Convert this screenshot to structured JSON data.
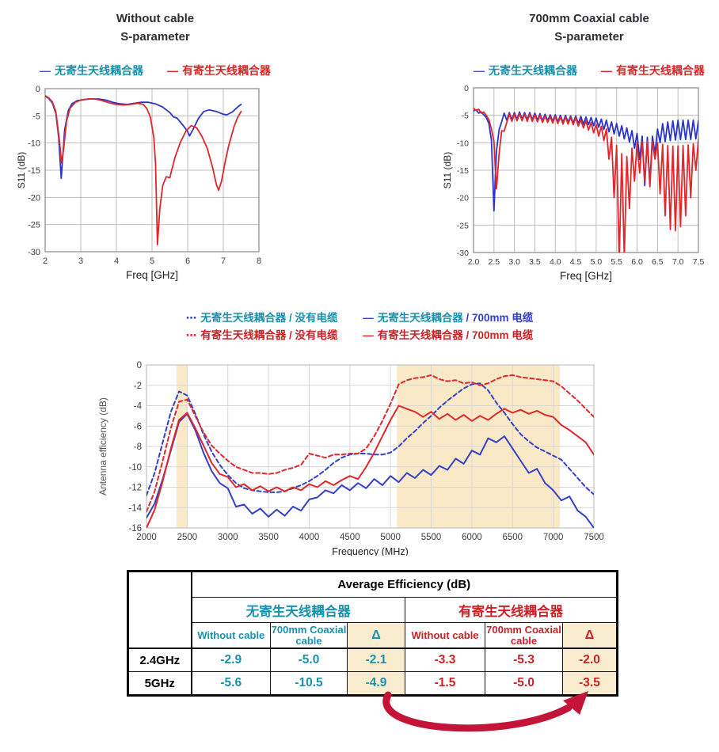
{
  "colors": {
    "blue_line": "#2a35c9",
    "red_line": "#e2262b",
    "teal_text": "#1792ad",
    "red_text": "#cc2127",
    "legend_blue": "#4a52d4",
    "legend_red": "#d42a2a",
    "mid_blue": "#3340c8",
    "band": "#fae9c7",
    "delta_bg": "#faecce",
    "arrow": "#c41538"
  },
  "chart_data": [
    {
      "type": "line",
      "name": "s11_without_cable",
      "title_line1": "Without cable",
      "title_line2": "S-parameter",
      "legend": [
        {
          "marker": "—",
          "marker_color": "#4a52d4",
          "label": "无寄生天线耦合器",
          "label_color": "#1792ad"
        },
        {
          "marker": "—",
          "marker_color": "#e2262b",
          "label": "有寄生天线耦合器",
          "label_color": "#d42a2a"
        }
      ],
      "xlabel": "Freq [GHz]",
      "ylabel": "S11 (dB)",
      "xlim": [
        2,
        8
      ],
      "ylim": [
        -30,
        0
      ],
      "x_ticks": [
        2,
        3,
        4,
        5,
        6,
        7,
        8
      ],
      "x_tick_labels": [
        "2",
        "3",
        "4",
        "5",
        "6",
        "7",
        "8"
      ],
      "y_ticks": [
        0,
        -5,
        -10,
        -15,
        -20,
        -25,
        -30
      ],
      "grid": true,
      "series": [
        {
          "name": "无寄生天线耦合器",
          "color": "#2a35c9",
          "style": "solid",
          "points": [
            [
              2.0,
              -1.4
            ],
            [
              2.1,
              -1.8
            ],
            [
              2.2,
              -2.6
            ],
            [
              2.3,
              -4.5
            ],
            [
              2.38,
              -9.0
            ],
            [
              2.45,
              -16.5
            ],
            [
              2.5,
              -12.0
            ],
            [
              2.55,
              -7.5
            ],
            [
              2.65,
              -4.0
            ],
            [
              2.75,
              -2.8
            ],
            [
              2.9,
              -2.2
            ],
            [
              3.1,
              -2.0
            ],
            [
              3.3,
              -1.9
            ],
            [
              3.5,
              -1.9
            ],
            [
              3.7,
              -2.1
            ],
            [
              3.9,
              -2.5
            ],
            [
              4.1,
              -2.8
            ],
            [
              4.3,
              -2.9
            ],
            [
              4.5,
              -2.7
            ],
            [
              4.7,
              -2.5
            ],
            [
              4.9,
              -2.5
            ],
            [
              5.1,
              -2.8
            ],
            [
              5.3,
              -3.4
            ],
            [
              5.5,
              -4.4
            ],
            [
              5.6,
              -5.2
            ],
            [
              5.7,
              -5.4
            ],
            [
              5.8,
              -6.2
            ],
            [
              5.9,
              -7.0
            ],
            [
              6.0,
              -7.9
            ],
            [
              6.05,
              -8.7
            ],
            [
              6.15,
              -7.5
            ],
            [
              6.3,
              -5.5
            ],
            [
              6.45,
              -4.2
            ],
            [
              6.6,
              -3.9
            ],
            [
              6.8,
              -4.2
            ],
            [
              7.0,
              -4.7
            ],
            [
              7.1,
              -4.8
            ],
            [
              7.25,
              -4.3
            ],
            [
              7.4,
              -3.4
            ],
            [
              7.5,
              -2.9
            ]
          ]
        },
        {
          "name": "有寄生天线耦合器",
          "color": "#e2262b",
          "style": "solid",
          "points": [
            [
              2.0,
              -1.3
            ],
            [
              2.1,
              -1.7
            ],
            [
              2.2,
              -2.4
            ],
            [
              2.3,
              -4.2
            ],
            [
              2.4,
              -9.5
            ],
            [
              2.46,
              -13.7
            ],
            [
              2.52,
              -11.0
            ],
            [
              2.6,
              -6.0
            ],
            [
              2.7,
              -3.6
            ],
            [
              2.85,
              -2.5
            ],
            [
              3.0,
              -2.1
            ],
            [
              3.2,
              -1.9
            ],
            [
              3.4,
              -1.9
            ],
            [
              3.6,
              -2.2
            ],
            [
              3.8,
              -2.6
            ],
            [
              4.0,
              -2.9
            ],
            [
              4.2,
              -3.0
            ],
            [
              4.4,
              -2.9
            ],
            [
              4.6,
              -2.7
            ],
            [
              4.75,
              -2.9
            ],
            [
              4.85,
              -3.6
            ],
            [
              4.95,
              -5.2
            ],
            [
              5.05,
              -9.0
            ],
            [
              5.1,
              -14.0
            ],
            [
              5.15,
              -28.7
            ],
            [
              5.22,
              -22.0
            ],
            [
              5.3,
              -17.8
            ],
            [
              5.4,
              -16.2
            ],
            [
              5.5,
              -16.4
            ],
            [
              5.55,
              -15.0
            ],
            [
              5.65,
              -12.5
            ],
            [
              5.8,
              -9.8
            ],
            [
              5.95,
              -7.8
            ],
            [
              6.1,
              -6.8
            ],
            [
              6.25,
              -7.2
            ],
            [
              6.4,
              -8.8
            ],
            [
              6.55,
              -11.0
            ],
            [
              6.7,
              -14.5
            ],
            [
              6.8,
              -17.5
            ],
            [
              6.87,
              -18.7
            ],
            [
              6.95,
              -17.0
            ],
            [
              7.05,
              -13.5
            ],
            [
              7.15,
              -10.5
            ],
            [
              7.3,
              -7.0
            ],
            [
              7.4,
              -5.3
            ],
            [
              7.5,
              -4.2
            ]
          ]
        }
      ]
    },
    {
      "type": "line",
      "name": "s11_700mm_coaxial_cable",
      "title_line1": "700mm Coaxial cable",
      "title_line2": "S-parameter",
      "legend": [
        {
          "marker": "—",
          "marker_color": "#4a52d4",
          "label": "无寄生天线耦合器",
          "label_color": "#1792ad"
        },
        {
          "marker": "—",
          "marker_color": "#e2262b",
          "label": "有寄生天线耦合器",
          "label_color": "#d42a2a"
        }
      ],
      "xlabel": "Freq [GHz]",
      "ylabel": "S11 (dB)",
      "xlim": [
        2,
        7.5
      ],
      "ylim": [
        -30,
        0
      ],
      "x_ticks": [
        2.0,
        2.5,
        3.0,
        3.5,
        4.0,
        4.5,
        5.0,
        5.5,
        6.0,
        6.5,
        7.0,
        7.5
      ],
      "x_tick_labels": [
        "2.0",
        "2.5",
        "3.0",
        "3.5",
        "4.0",
        "4.5",
        "5.0",
        "5.5",
        "6.0",
        "6.5",
        "7.0",
        "7.5"
      ],
      "y_ticks": [
        0,
        -5,
        -10,
        -15,
        -20,
        -25,
        -30
      ],
      "grid": true,
      "series": [
        {
          "name": "无寄生天线耦合器",
          "color": "#2a35c9",
          "style": "solid",
          "x0": 2.0,
          "dx": 0.0625,
          "values": [
            -4.2,
            -4.0,
            -4.6,
            -4.4,
            -4.9,
            -5.4,
            -6.5,
            -9.5,
            -22.4,
            -11.5,
            -7.6,
            -6.2,
            -4.6,
            -5.9,
            -4.5,
            -5.8,
            -4.5,
            -5.7,
            -4.4,
            -5.7,
            -4.5,
            -5.8,
            -4.5,
            -5.8,
            -4.6,
            -5.9,
            -4.7,
            -6.0,
            -4.8,
            -6.0,
            -4.9,
            -6.1,
            -4.9,
            -6.2,
            -5.0,
            -6.3,
            -5.0,
            -6.3,
            -5.1,
            -6.4,
            -5.1,
            -6.5,
            -5.2,
            -6.6,
            -5.3,
            -6.7,
            -5.4,
            -6.9,
            -5.5,
            -7.2,
            -5.7,
            -7.6,
            -5.9,
            -8.0,
            -6.2,
            -8.4,
            -6.5,
            -8.8,
            -6.9,
            -9.3,
            -7.3,
            -9.9,
            -7.8,
            -11.0,
            -8.3,
            -13.0,
            -8.8,
            -17.8,
            -9.0,
            -17.5,
            -8.8,
            -12.0,
            -7.5,
            -10.0,
            -6.5,
            -9.8,
            -6.2,
            -9.6,
            -6.0,
            -9.5,
            -5.9,
            -9.4,
            -5.9,
            -9.4,
            -5.9,
            -9.4,
            -5.9,
            -9.3,
            -6.0
          ]
        },
        {
          "name": "有寄生天线耦合器",
          "color": "#e2262b",
          "style": "solid",
          "x0": 2.0,
          "dx": 0.0625,
          "values": [
            -3.7,
            -4.1,
            -3.9,
            -4.6,
            -4.4,
            -5.0,
            -5.8,
            -7.5,
            -9.8,
            -18.4,
            -12.0,
            -7.8,
            -7.9,
            -6.3,
            -4.8,
            -6.1,
            -4.8,
            -6.0,
            -4.7,
            -6.0,
            -4.8,
            -6.1,
            -4.8,
            -6.1,
            -4.9,
            -6.2,
            -5.0,
            -6.3,
            -5.1,
            -6.3,
            -5.2,
            -6.4,
            -5.2,
            -6.5,
            -5.3,
            -6.6,
            -5.3,
            -6.6,
            -5.4,
            -6.7,
            -5.4,
            -7.0,
            -5.8,
            -7.3,
            -6.0,
            -7.7,
            -6.3,
            -8.2,
            -6.6,
            -8.8,
            -7.0,
            -9.6,
            -7.5,
            -13.0,
            -9.0,
            -20.0,
            -10.5,
            -31.5,
            -12.0,
            -31.0,
            -12.5,
            -22.0,
            -11.0,
            -17.0,
            -10.0,
            -15.5,
            -9.8,
            -17.0,
            -9.7,
            -18.0,
            -9.7,
            -13.0,
            -10.0,
            -19.3,
            -10.3,
            -23.3,
            -10.5,
            -25.8,
            -10.6,
            -26.0,
            -10.6,
            -25.3,
            -10.5,
            -23.3,
            -10.4,
            -20.0,
            -10.2,
            -15.0,
            -9.4
          ]
        }
      ]
    },
    {
      "type": "line",
      "name": "antenna_efficiency",
      "legend": [
        {
          "marker": "⋯",
          "marker_color": "#3340c8",
          "label": "无寄生天线耦合器 / 没有电缆",
          "label_color": "#1792ad",
          "suffix": "",
          "suffix_color": "#1792ad"
        },
        {
          "marker": "—",
          "marker_color": "#3340c8",
          "label": "无寄生天线耦合器",
          "label_color": "#1792ad",
          "suffix": " / 700mm 电缆",
          "suffix_color": "#3340c8"
        },
        {
          "marker": "⋯",
          "marker_color": "#e2262b",
          "label": "有寄生天线耦合器 / 没有电缆",
          "label_color": "#cc2127",
          "suffix": "",
          "suffix_color": "#cc2127"
        },
        {
          "marker": "—",
          "marker_color": "#e2262b",
          "label": "有寄生天线耦合器",
          "label_color": "#cc2127",
          "suffix": " / 700mm 电缆",
          "suffix_color": "#cc2127"
        }
      ],
      "xlabel": "Frequency (MHz)",
      "ylabel": "Antenna efficiency (dB)",
      "xlim": [
        2000,
        7500
      ],
      "ylim": [
        -16,
        0
      ],
      "x_ticks": [
        2000,
        2500,
        3000,
        3500,
        4000,
        4500,
        5000,
        5500,
        6000,
        6500,
        7000,
        7500
      ],
      "x_tick_labels": [
        "2000",
        "2500",
        "3000",
        "3500",
        "4000",
        "4500",
        "5000",
        "5500",
        "6000",
        "6500",
        "7000",
        "7500"
      ],
      "y_ticks": [
        0,
        -2,
        -4,
        -6,
        -8,
        -10,
        -12,
        -14,
        -16
      ],
      "grid": true,
      "bands": [
        [
          2370,
          2500
        ],
        [
          5080,
          7080
        ]
      ],
      "band_color": "#fae9c7",
      "series": [
        {
          "name": "无寄生天线耦合器 / 没有电缆",
          "color": "#3340c8",
          "style": "dashed",
          "x0": 2000,
          "dx": 100,
          "values": [
            -12.8,
            -10.6,
            -7.6,
            -4.6,
            -2.6,
            -3.0,
            -4.8,
            -6.8,
            -8.5,
            -9.8,
            -10.8,
            -11.6,
            -12.1,
            -12.3,
            -12.4,
            -12.5,
            -12.5,
            -12.4,
            -12.1,
            -11.8,
            -11.4,
            -10.9,
            -10.3,
            -9.6,
            -9.1,
            -8.8,
            -8.7,
            -8.7,
            -8.8,
            -8.8,
            -8.6,
            -8.0,
            -7.2,
            -6.5,
            -5.7,
            -5.0,
            -4.2,
            -3.5,
            -2.9,
            -2.3,
            -1.9,
            -1.8,
            -2.5,
            -3.7,
            -4.7,
            -5.8,
            -6.8,
            -7.5,
            -8.1,
            -8.5,
            -8.9,
            -9.3,
            -10.2,
            -11.1,
            -12.0,
            -12.7
          ]
        },
        {
          "name": "有寄生天线耦合器 / 没有电缆",
          "color": "#e2262b",
          "style": "dashed",
          "x0": 2000,
          "dx": 100,
          "values": [
            -14.4,
            -12.4,
            -9.4,
            -6.2,
            -3.6,
            -3.4,
            -5.0,
            -6.6,
            -7.9,
            -8.7,
            -9.4,
            -10.0,
            -10.3,
            -10.6,
            -10.6,
            -10.7,
            -10.6,
            -10.3,
            -10.1,
            -9.8,
            -8.7,
            -8.9,
            -9.1,
            -8.8,
            -8.8,
            -8.7,
            -8.7,
            -8.2,
            -7.0,
            -5.5,
            -3.8,
            -1.9,
            -1.5,
            -1.3,
            -1.2,
            -1.0,
            -1.4,
            -1.6,
            -1.5,
            -1.8,
            -1.7,
            -2.0,
            -1.8,
            -1.4,
            -1.1,
            -1.0,
            -1.2,
            -1.3,
            -1.4,
            -1.5,
            -1.6,
            -2.1,
            -2.8,
            -3.5,
            -4.3,
            -5.1
          ]
        },
        {
          "name": "无寄生天线耦合器 / 700mm 电缆",
          "color": "#3340c8",
          "style": "solid",
          "x0": 2000,
          "dx": 100,
          "values": [
            -15.0,
            -13.6,
            -11.2,
            -8.4,
            -5.6,
            -4.8,
            -6.4,
            -8.6,
            -10.4,
            -11.6,
            -12.1,
            -13.9,
            -13.7,
            -14.6,
            -14.1,
            -14.9,
            -14.2,
            -14.8,
            -13.9,
            -14.3,
            -13.2,
            -13.0,
            -12.3,
            -12.6,
            -11.8,
            -12.3,
            -11.6,
            -12.1,
            -11.2,
            -11.8,
            -10.9,
            -11.5,
            -10.6,
            -11.1,
            -10.3,
            -10.8,
            -9.9,
            -10.3,
            -9.2,
            -9.7,
            -8.4,
            -8.8,
            -7.2,
            -7.6,
            -7.0,
            -8.2,
            -9.4,
            -10.6,
            -10.2,
            -11.6,
            -12.3,
            -13.3,
            -12.9,
            -14.3,
            -14.9,
            -16.0
          ]
        },
        {
          "name": "有寄生天线耦合器 / 700mm 电缆",
          "color": "#e2262b",
          "style": "solid",
          "x0": 2000,
          "dx": 100,
          "values": [
            -16.0,
            -14.2,
            -11.4,
            -8.2,
            -5.4,
            -4.7,
            -6.2,
            -7.9,
            -9.6,
            -10.7,
            -11.0,
            -12.0,
            -11.7,
            -12.3,
            -11.9,
            -12.4,
            -12.0,
            -12.4,
            -12.0,
            -12.3,
            -11.7,
            -12.0,
            -11.4,
            -11.8,
            -11.3,
            -10.9,
            -11.2,
            -10.0,
            -8.6,
            -7.0,
            -5.4,
            -4.0,
            -4.3,
            -4.6,
            -5.1,
            -4.6,
            -5.3,
            -4.8,
            -5.4,
            -4.9,
            -5.5,
            -5.0,
            -5.4,
            -4.8,
            -4.3,
            -4.7,
            -4.4,
            -4.8,
            -4.5,
            -4.9,
            -5.1,
            -5.9,
            -6.4,
            -7.0,
            -7.6,
            -8.8
          ]
        }
      ]
    }
  ],
  "table": {
    "title": "Average Efficiency (dB)",
    "group_headers": [
      {
        "label": "无寄生天线耦合器",
        "color": "#1792ad"
      },
      {
        "label": "有寄生天线耦合器",
        "color": "#cc2127"
      }
    ],
    "col_headers": [
      "Without cable",
      "700mm Coaxial cable",
      "Δ",
      "Without cable",
      "700mm Coaxial cable",
      "Δ"
    ],
    "rows": [
      {
        "label": "2.4GHz",
        "values": [
          "-2.9",
          "-5.0",
          "-2.1",
          "-3.3",
          "-5.3",
          "-2.0"
        ]
      },
      {
        "label": "5GHz",
        "values": [
          "-5.6",
          "-10.5",
          "-4.9",
          "-1.5",
          "-5.0",
          "-3.5"
        ]
      }
    ]
  }
}
